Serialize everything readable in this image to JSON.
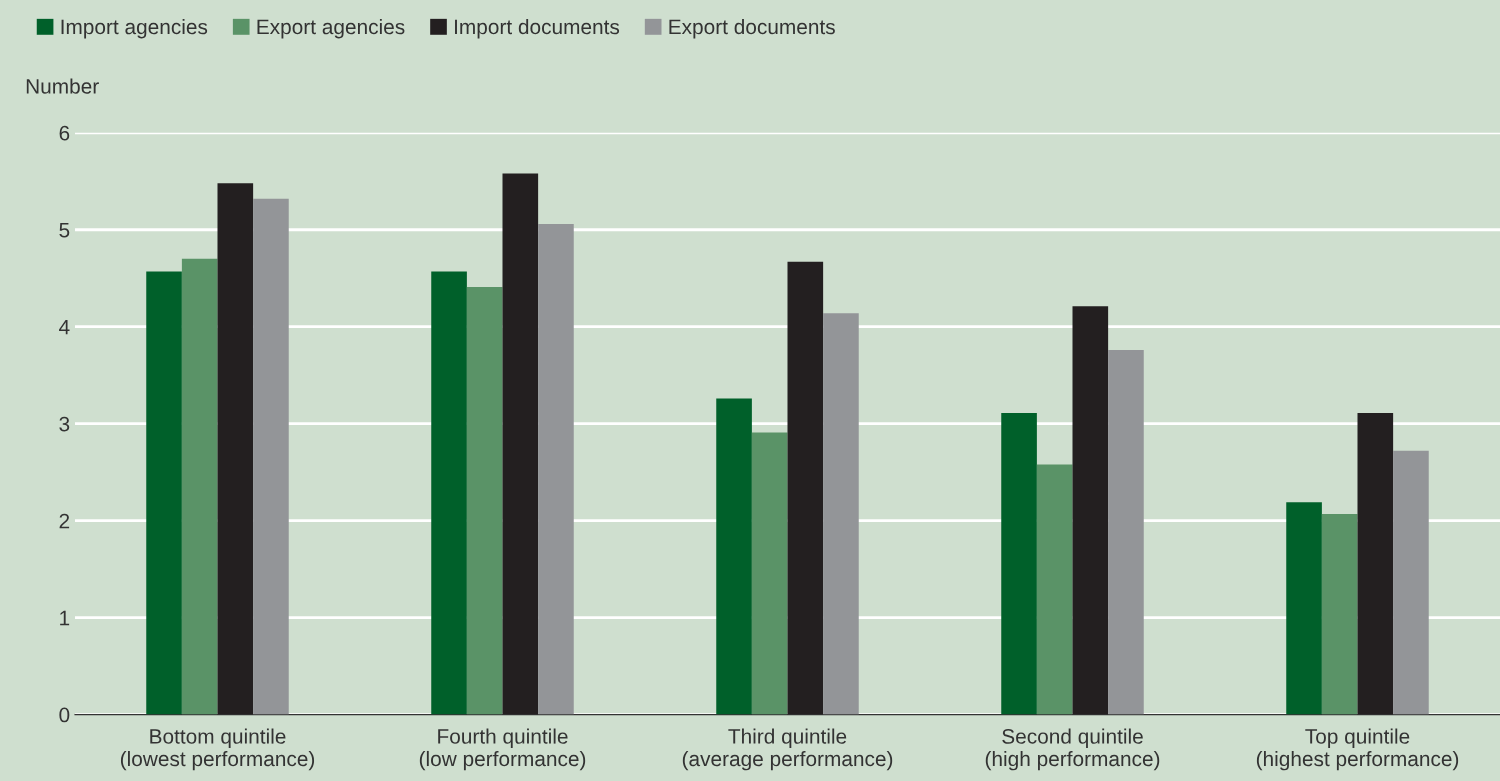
{
  "chart_data": {
    "type": "bar",
    "ylabel": "Number",
    "categories": [
      "Bottom quintile\n(lowest performance)",
      "Fourth quintile\n(low performance)",
      "Third quintile\n(average performance)",
      "Second quintile\n(high performance)",
      "Top quintile\n(highest performance)"
    ],
    "series": [
      {
        "name": "Import agencies",
        "color": "#00602a",
        "values": [
          4.57,
          4.57,
          3.26,
          3.11,
          2.19
        ]
      },
      {
        "name": "Export agencies",
        "color": "#5a9367",
        "values": [
          4.7,
          4.41,
          2.91,
          2.58,
          2.07
        ]
      },
      {
        "name": "Import documents",
        "color": "#231f20",
        "values": [
          5.48,
          5.58,
          4.67,
          4.21,
          3.11
        ]
      },
      {
        "name": "Export documents",
        "color": "#939598",
        "values": [
          5.32,
          5.06,
          4.14,
          3.76,
          2.72
        ]
      }
    ],
    "ylim": [
      0,
      6
    ],
    "yticks": [
      0,
      1,
      2,
      3,
      4,
      5,
      6
    ],
    "grid": "y",
    "legend": "top left"
  }
}
